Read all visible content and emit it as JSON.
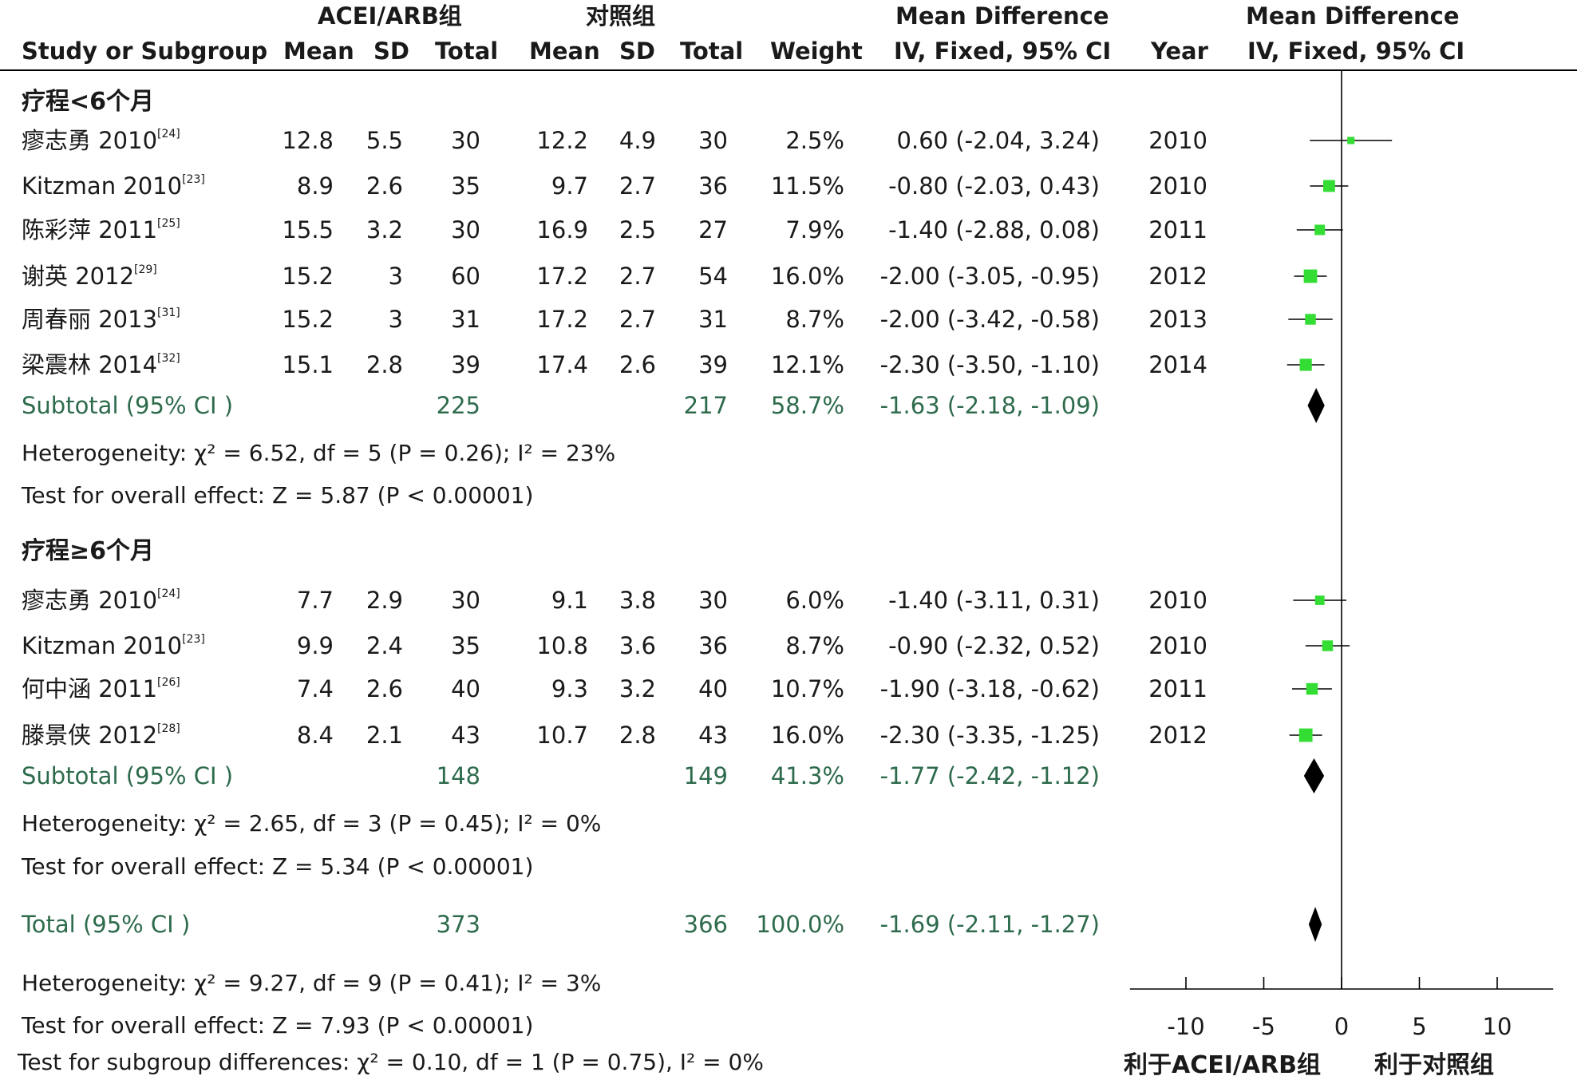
{
  "header": {
    "group1": "ACEI/ARB组",
    "group2": "对照组",
    "md_title_left": "Mean Difference",
    "md_title_right": "Mean Difference",
    "col_study": "Study or Subgroup",
    "col_mean1": "Mean",
    "col_sd1": "SD",
    "col_total1": "Total",
    "col_mean2": "Mean",
    "col_sd2": "SD",
    "col_total2": "Total",
    "col_weight": "Weight",
    "col_md": "IV, Fixed, 95% CI",
    "col_year": "Year",
    "col_md_plot": "IV, Fixed, 95% CI"
  },
  "groups": [
    {
      "label": "疗程<6个月",
      "studies": [
        {
          "name": "瘳志勇 2010",
          "ref": "[24]",
          "mean1": "12.8",
          "sd1": "5.5",
          "n1": "30",
          "mean2": "12.2",
          "sd2": "4.9",
          "n2": "30",
          "weight": "2.5%",
          "ci": "0.60 (-2.04, 3.24)",
          "year": "2010",
          "md": 0.6,
          "lo": -2.04,
          "hi": 3.24,
          "w": 2.5
        },
        {
          "name": "Kitzman 2010",
          "ref": "[23]",
          "mean1": "8.9",
          "sd1": "2.6",
          "n1": "35",
          "mean2": "9.7",
          "sd2": "2.7",
          "n2": "36",
          "weight": "11.5%",
          "ci": "-0.80 (-2.03, 0.43)",
          "year": "2010",
          "md": -0.8,
          "lo": -2.03,
          "hi": 0.43,
          "w": 11.5
        },
        {
          "name": "陈彩萍 2011",
          "ref": "[25]",
          "mean1": "15.5",
          "sd1": "3.2",
          "n1": "30",
          "mean2": "16.9",
          "sd2": "2.5",
          "n2": "27",
          "weight": "7.9%",
          "ci": "-1.40 (-2.88, 0.08)",
          "year": "2011",
          "md": -1.4,
          "lo": -2.88,
          "hi": 0.08,
          "w": 7.9
        },
        {
          "name": "谢英 2012",
          "ref": "[29]",
          "mean1": "15.2",
          "sd1": "3",
          "n1": "60",
          "mean2": "17.2",
          "sd2": "2.7",
          "n2": "54",
          "weight": "16.0%",
          "ci": "-2.00 (-3.05, -0.95)",
          "year": "2012",
          "md": -2.0,
          "lo": -3.05,
          "hi": -0.95,
          "w": 16.0
        },
        {
          "name": "周春丽 2013",
          "ref": "[31]",
          "mean1": "15.2",
          "sd1": "3",
          "n1": "31",
          "mean2": "17.2",
          "sd2": "2.7",
          "n2": "31",
          "weight": "8.7%",
          "ci": "-2.00 (-3.42, -0.58)",
          "year": "2013",
          "md": -2.0,
          "lo": -3.42,
          "hi": -0.58,
          "w": 8.7
        },
        {
          "name": "梁震林 2014",
          "ref": "[32]",
          "mean1": "15.1",
          "sd1": "2.8",
          "n1": "39",
          "mean2": "17.4",
          "sd2": "2.6",
          "n2": "39",
          "weight": "12.1%",
          "ci": "-2.30 (-3.50, -1.10)",
          "year": "2014",
          "md": -2.3,
          "lo": -3.5,
          "hi": -1.1,
          "w": 12.1
        }
      ],
      "subtotal": {
        "label": "Subtotal (95% CI )",
        "n1": "225",
        "n2": "217",
        "weight": "58.7%",
        "ci": "-1.63 (-2.18, -1.09)",
        "md": -1.63,
        "lo": -2.18,
        "hi": -1.09
      },
      "heterogeneity": "Heterogeneity:  χ² = 6.52, df = 5 (P = 0.26); I² = 23%",
      "overall": "Test for overall effect: Z = 5.87 (P < 0.00001)"
    },
    {
      "label": "疗程≥6个月",
      "studies": [
        {
          "name": "瘳志勇 2010",
          "ref": "[24]",
          "mean1": "7.7",
          "sd1": "2.9",
          "n1": "30",
          "mean2": "9.1",
          "sd2": "3.8",
          "n2": "30",
          "weight": "6.0%",
          "ci": "-1.40 (-3.11, 0.31)",
          "year": "2010",
          "md": -1.4,
          "lo": -3.11,
          "hi": 0.31,
          "w": 6.0
        },
        {
          "name": "Kitzman 2010",
          "ref": "[23]",
          "mean1": "9.9",
          "sd1": "2.4",
          "n1": "35",
          "mean2": "10.8",
          "sd2": "3.6",
          "n2": "36",
          "weight": "8.7%",
          "ci": "-0.90 (-2.32, 0.52)",
          "year": "2010",
          "md": -0.9,
          "lo": -2.32,
          "hi": 0.52,
          "w": 8.7
        },
        {
          "name": "何中涵 2011",
          "ref": "[26]",
          "mean1": "7.4",
          "sd1": "2.6",
          "n1": "40",
          "mean2": "9.3",
          "sd2": "3.2",
          "n2": "40",
          "weight": "10.7%",
          "ci": "-1.90 (-3.18, -0.62)",
          "year": "2011",
          "md": -1.9,
          "lo": -3.18,
          "hi": -0.62,
          "w": 10.7
        },
        {
          "name": "滕景侠 2012",
          "ref": "[28]",
          "mean1": "8.4",
          "sd1": "2.1",
          "n1": "43",
          "mean2": "10.7",
          "sd2": "2.8",
          "n2": "43",
          "weight": "16.0%",
          "ci": "-2.30 (-3.35, -1.25)",
          "year": "2012",
          "md": -2.3,
          "lo": -3.35,
          "hi": -1.25,
          "w": 16.0
        }
      ],
      "subtotal": {
        "label": "Subtotal (95% CI )",
        "n1": "148",
        "n2": "149",
        "weight": "41.3%",
        "ci": "-1.77 (-2.42, -1.12)",
        "md": -1.77,
        "lo": -2.42,
        "hi": -1.12
      },
      "heterogeneity": "Heterogeneity:  χ² = 2.65, df = 3 (P = 0.45); I² = 0%",
      "overall": "Test for overall effect: Z = 5.34 (P < 0.00001)"
    }
  ],
  "total": {
    "label": "Total (95% CI )",
    "n1": "373",
    "n2": "366",
    "weight": "100.0%",
    "ci": "-1.69 (-2.11, -1.27)",
    "md": -1.69,
    "lo": -2.11,
    "hi": -1.27
  },
  "total_heterogeneity": "Heterogeneity:  χ² = 9.27, df = 9 (P = 0.41); I² = 3%",
  "total_overall": "Test for overall effect: Z = 7.93 (P < 0.00001)",
  "subgroup_diff": "Test for subgroup differences:  χ² = 0.10, df = 1 (P = 0.75),  I² = 0%",
  "chart_data": {
    "type": "forest",
    "x_ticks": [
      -10,
      -5,
      0,
      5,
      10
    ],
    "xlim": [
      -13.6,
      13.6
    ],
    "favours_left": "利于ACEI/ARB组",
    "favours_right": "利于对照组",
    "point_color": "#33dd33",
    "diamond_color": "#000000"
  }
}
